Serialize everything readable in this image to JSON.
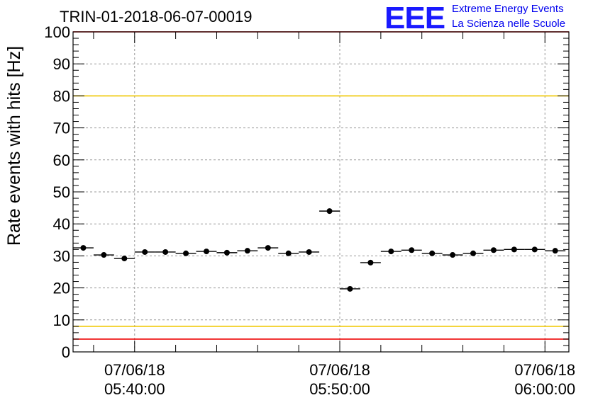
{
  "chart_data": {
    "type": "scatter",
    "title": "TRIN-01-2018-06-07-00019",
    "ylabel": "Rate events with hits [Hz]",
    "xlabel": "",
    "ylim": [
      0,
      100
    ],
    "y_ticks": [
      "0",
      "10",
      "20",
      "30",
      "40",
      "50",
      "60",
      "70",
      "80",
      "90",
      "100"
    ],
    "x_tick_labels": [
      {
        "date": "07/06/18",
        "time": "05:40:00"
      },
      {
        "date": "07/06/18",
        "time": "05:50:00"
      },
      {
        "date": "07/06/18",
        "time": "06:00:00"
      }
    ],
    "x_range": [
      "05:37:00",
      "06:01:10"
    ],
    "bin_minutes": 1,
    "grid": true,
    "series": [
      {
        "marker_color": "#000000",
        "points": [
          {
            "x": "05:37:30",
            "y": 32.5
          },
          {
            "x": "05:38:30",
            "y": 30.3
          },
          {
            "x": "05:39:30",
            "y": 29.2
          },
          {
            "x": "05:40:30",
            "y": 31.2
          },
          {
            "x": "05:41:30",
            "y": 31.2
          },
          {
            "x": "05:42:30",
            "y": 30.8
          },
          {
            "x": "05:43:30",
            "y": 31.4
          },
          {
            "x": "05:44:30",
            "y": 31.0
          },
          {
            "x": "05:45:30",
            "y": 31.6
          },
          {
            "x": "05:46:30",
            "y": 32.5
          },
          {
            "x": "05:47:30",
            "y": 30.8
          },
          {
            "x": "05:48:30",
            "y": 31.2
          },
          {
            "x": "05:49:30",
            "y": 44.0
          },
          {
            "x": "05:50:30",
            "y": 19.7
          },
          {
            "x": "05:51:30",
            "y": 27.9
          },
          {
            "x": "05:52:30",
            "y": 31.4
          },
          {
            "x": "05:53:30",
            "y": 31.8
          },
          {
            "x": "05:54:30",
            "y": 30.8
          },
          {
            "x": "05:55:30",
            "y": 30.3
          },
          {
            "x": "05:56:30",
            "y": 30.8
          },
          {
            "x": "05:57:30",
            "y": 31.8
          },
          {
            "x": "05:58:30",
            "y": 32.0
          },
          {
            "x": "05:59:30",
            "y": 32.0
          },
          {
            "x": "06:00:30",
            "y": 31.6
          }
        ]
      }
    ],
    "reference_lines": [
      {
        "y": 100,
        "color": "#ee0000"
      },
      {
        "y": 80,
        "color": "#f0c800"
      },
      {
        "y": 8,
        "color": "#f0c800"
      },
      {
        "y": 4,
        "color": "#ee0000"
      }
    ]
  },
  "logo": {
    "mark": "EEE",
    "line1": "Extreme Energy Events",
    "line2": "La Scienza nelle Scuole",
    "color": "#1a1aff"
  }
}
